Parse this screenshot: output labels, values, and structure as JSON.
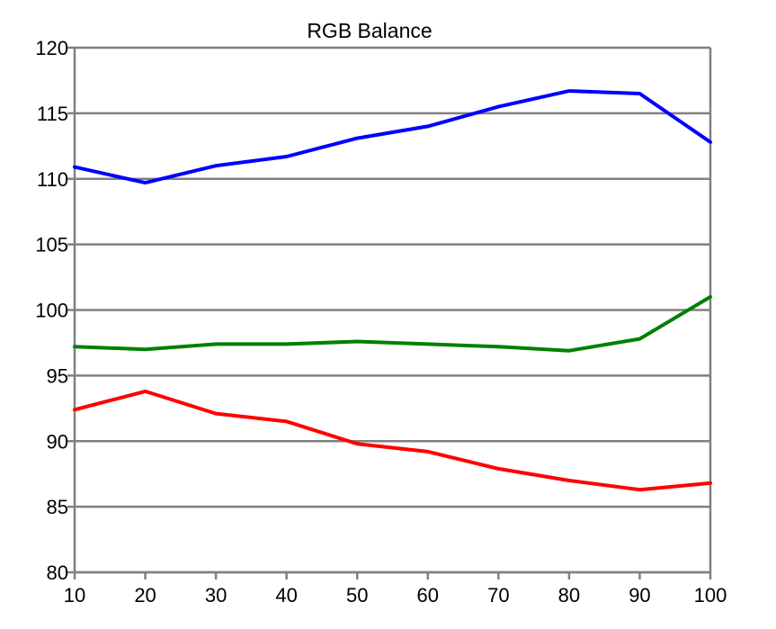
{
  "chart_data": {
    "type": "line",
    "title": "RGB Balance",
    "xlabel": "",
    "ylabel": "",
    "x": [
      10,
      20,
      30,
      40,
      50,
      60,
      70,
      80,
      90,
      100
    ],
    "xlim": [
      10,
      100
    ],
    "ylim": [
      80,
      120
    ],
    "yticks": [
      80,
      85,
      90,
      95,
      100,
      105,
      110,
      115,
      120
    ],
    "grid": true,
    "legend": "none",
    "series": [
      {
        "name": "Blue",
        "color": "#0000ff",
        "values": [
          110.9,
          109.7,
          111.0,
          111.7,
          113.1,
          114.0,
          115.5,
          116.7,
          116.5,
          112.8
        ]
      },
      {
        "name": "Green",
        "color": "#008000",
        "values": [
          97.2,
          97.0,
          97.4,
          97.4,
          97.6,
          97.4,
          97.2,
          96.9,
          97.8,
          101.0
        ]
      },
      {
        "name": "Red",
        "color": "#ff0000",
        "values": [
          92.4,
          93.8,
          92.1,
          91.5,
          89.8,
          89.2,
          87.9,
          87.0,
          86.3,
          86.8
        ]
      }
    ]
  }
}
